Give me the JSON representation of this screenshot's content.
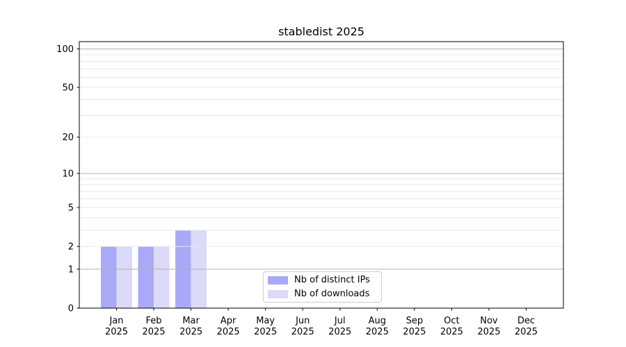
{
  "chart_data": {
    "type": "bar",
    "title": "stabledist 2025",
    "categories": [
      "Jan 2025",
      "Feb 2025",
      "Mar 2025",
      "Apr 2025",
      "May 2025",
      "Jun 2025",
      "Jul 2025",
      "Aug 2025",
      "Sep 2025",
      "Oct 2025",
      "Nov 2025",
      "Dec 2025"
    ],
    "series": [
      {
        "name": "Nb of distinct IPs",
        "color": "#a9a9f7",
        "values": [
          2,
          2,
          3,
          0,
          0,
          0,
          0,
          0,
          0,
          0,
          0,
          0
        ]
      },
      {
        "name": "Nb of downloads",
        "color": "#dbdaf8",
        "values": [
          2,
          2,
          3,
          0,
          0,
          0,
          0,
          0,
          0,
          0,
          0,
          0
        ]
      }
    ],
    "xlabel": "",
    "ylabel": "",
    "yscale": "log1p",
    "ylim": [
      0,
      114
    ],
    "yticks": [
      0,
      1,
      2,
      5,
      10,
      20,
      50,
      100
    ],
    "grid": {
      "on": true,
      "major_values": [
        1,
        10,
        100
      ],
      "minor_values": [
        2,
        3,
        4,
        5,
        6,
        7,
        8,
        9,
        20,
        30,
        40,
        50,
        60,
        70,
        80,
        90
      ],
      "major_color": "#b0b0b0",
      "minor_color": "#e8e8e8"
    },
    "axis_color": "#000000",
    "text_color": "#000000",
    "legend_position": "lower center"
  }
}
